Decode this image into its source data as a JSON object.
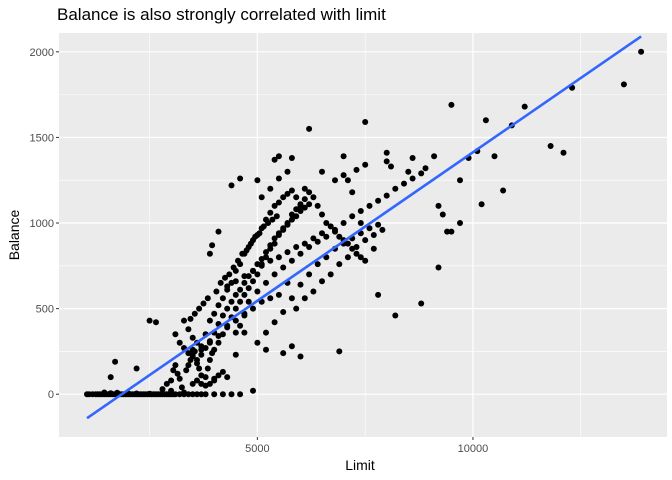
{
  "chart_data": {
    "type": "scatter",
    "title": "Balance is also strongly correlated with limit",
    "xlabel": "Limit",
    "ylabel": "Balance",
    "xlim": [
      400,
      14500
    ],
    "ylim": [
      -250,
      2110
    ],
    "x_ticks": [
      5000,
      10000
    ],
    "x_minor_ticks": [
      2500,
      7500,
      12500
    ],
    "y_ticks": [
      0,
      500,
      1000,
      1500,
      2000
    ],
    "y_minor_ticks": [
      250,
      750,
      1250,
      1750
    ],
    "grid": true,
    "legend": "none",
    "colors": {
      "panel": "#ebebeb",
      "grid": "#ffffff",
      "point": "#000000",
      "fit_line": "#3366ff"
    },
    "fit_line": {
      "x": [
        1050,
        13900
      ],
      "y": [
        -140,
        2090
      ]
    },
    "points": [
      [
        1050,
        0
      ],
      [
        1100,
        0
      ],
      [
        1180,
        0
      ],
      [
        1250,
        0
      ],
      [
        1300,
        0
      ],
      [
        1350,
        0
      ],
      [
        1400,
        0
      ],
      [
        1450,
        0
      ],
      [
        1500,
        0
      ],
      [
        1550,
        0
      ],
      [
        1600,
        0
      ],
      [
        1650,
        0
      ],
      [
        1700,
        0
      ],
      [
        1750,
        0
      ],
      [
        1800,
        0
      ],
      [
        1850,
        0
      ],
      [
        1900,
        0
      ],
      [
        1950,
        0
      ],
      [
        2000,
        0
      ],
      [
        2050,
        0
      ],
      [
        2100,
        0
      ],
      [
        2150,
        0
      ],
      [
        2200,
        0
      ],
      [
        2250,
        0
      ],
      [
        2300,
        0
      ],
      [
        2350,
        0
      ],
      [
        2400,
        0
      ],
      [
        2450,
        0
      ],
      [
        2500,
        0
      ],
      [
        2550,
        0
      ],
      [
        2600,
        0
      ],
      [
        2650,
        0
      ],
      [
        2700,
        0
      ],
      [
        2750,
        0
      ],
      [
        2800,
        0
      ],
      [
        2850,
        0
      ],
      [
        2900,
        0
      ],
      [
        2950,
        0
      ],
      [
        3000,
        0
      ],
      [
        3050,
        0
      ],
      [
        3100,
        0
      ],
      [
        3200,
        0
      ],
      [
        3300,
        0
      ],
      [
        3400,
        0
      ],
      [
        3500,
        0
      ],
      [
        3600,
        0
      ],
      [
        3700,
        0
      ],
      [
        3800,
        0
      ],
      [
        4000,
        0
      ],
      [
        4200,
        0
      ],
      [
        4400,
        0
      ],
      [
        4600,
        0
      ],
      [
        1450,
        10
      ],
      [
        1600,
        5
      ],
      [
        1750,
        8
      ],
      [
        2000,
        6
      ],
      [
        2200,
        4
      ],
      [
        2500,
        3
      ],
      [
        1700,
        190
      ],
      [
        1600,
        100
      ],
      [
        2200,
        150
      ],
      [
        2500,
        430
      ],
      [
        2650,
        420
      ],
      [
        2800,
        30
      ],
      [
        3000,
        20
      ],
      [
        2900,
        60
      ],
      [
        3000,
        80
      ],
      [
        3050,
        140
      ],
      [
        3100,
        170
      ],
      [
        3150,
        120
      ],
      [
        3200,
        90
      ],
      [
        3250,
        40
      ],
      [
        3300,
        10
      ],
      [
        3350,
        140
      ],
      [
        3400,
        170
      ],
      [
        3450,
        200
      ],
      [
        3500,
        260
      ],
      [
        3550,
        250
      ],
      [
        3600,
        180
      ],
      [
        3650,
        150
      ],
      [
        3700,
        60
      ],
      [
        3800,
        100
      ],
      [
        3850,
        150
      ],
      [
        3900,
        200
      ],
      [
        3950,
        240
      ],
      [
        4000,
        260
      ],
      [
        4100,
        300
      ],
      [
        4200,
        350
      ],
      [
        4300,
        400
      ],
      [
        4400,
        450
      ],
      [
        4500,
        500
      ],
      [
        4600,
        540
      ],
      [
        4700,
        580
      ],
      [
        4800,
        620
      ],
      [
        4900,
        660
      ],
      [
        5000,
        700
      ],
      [
        5100,
        760
      ],
      [
        5200,
        800
      ],
      [
        5300,
        850
      ],
      [
        5400,
        880
      ],
      [
        5500,
        930
      ],
      [
        5600,
        960
      ],
      [
        5700,
        1000
      ],
      [
        5800,
        1050
      ],
      [
        5900,
        1080
      ],
      [
        6000,
        1110
      ],
      [
        6100,
        1140
      ],
      [
        6200,
        1180
      ],
      [
        6300,
        1150
      ],
      [
        6400,
        1100
      ],
      [
        6500,
        1050
      ],
      [
        6600,
        1000
      ],
      [
        6700,
        980
      ],
      [
        6800,
        950
      ],
      [
        6900,
        920
      ],
      [
        7000,
        900
      ],
      [
        7100,
        880
      ],
      [
        7200,
        850
      ],
      [
        7300,
        820
      ],
      [
        7400,
        800
      ],
      [
        7500,
        780
      ],
      [
        3300,
        430
      ],
      [
        3400,
        380
      ],
      [
        3500,
        330
      ],
      [
        3600,
        300
      ],
      [
        3700,
        280
      ],
      [
        3800,
        350
      ],
      [
        3900,
        430
      ],
      [
        4000,
        470
      ],
      [
        4100,
        520
      ],
      [
        4200,
        560
      ],
      [
        4300,
        610
      ],
      [
        4400,
        650
      ],
      [
        4500,
        720
      ],
      [
        4600,
        760
      ],
      [
        4700,
        820
      ],
      [
        4800,
        860
      ],
      [
        4900,
        900
      ],
      [
        5000,
        930
      ],
      [
        5100,
        970
      ],
      [
        5200,
        1020
      ],
      [
        5300,
        1060
      ],
      [
        5400,
        1100
      ],
      [
        5500,
        1120
      ],
      [
        5600,
        1150
      ],
      [
        5700,
        1170
      ],
      [
        5800,
        1190
      ],
      [
        5900,
        1150
      ],
      [
        6000,
        1100
      ],
      [
        3950,
        870
      ],
      [
        3900,
        820
      ],
      [
        4100,
        950
      ],
      [
        3450,
        440
      ],
      [
        3550,
        470
      ],
      [
        3650,
        500
      ],
      [
        3750,
        530
      ],
      [
        3850,
        560
      ],
      [
        4050,
        600
      ],
      [
        4150,
        650
      ],
      [
        4250,
        680
      ],
      [
        4350,
        700
      ],
      [
        4450,
        740
      ],
      [
        4550,
        780
      ],
      [
        4650,
        820
      ],
      [
        4750,
        840
      ],
      [
        4850,
        880
      ],
      [
        4950,
        920
      ],
      [
        5050,
        940
      ],
      [
        5150,
        980
      ],
      [
        5250,
        1000
      ],
      [
        5350,
        1020
      ],
      [
        5450,
        1040
      ],
      [
        3100,
        350
      ],
      [
        3200,
        300
      ],
      [
        3300,
        270
      ],
      [
        3400,
        240
      ],
      [
        3500,
        220
      ],
      [
        3600,
        200
      ],
      [
        3700,
        230
      ],
      [
        3800,
        270
      ],
      [
        3900,
        310
      ],
      [
        4000,
        360
      ],
      [
        4100,
        410
      ],
      [
        4200,
        460
      ],
      [
        4300,
        500
      ],
      [
        4400,
        540
      ],
      [
        4500,
        580
      ],
      [
        4600,
        610
      ],
      [
        4700,
        650
      ],
      [
        4800,
        690
      ],
      [
        4900,
        720
      ],
      [
        5000,
        760
      ],
      [
        5100,
        790
      ],
      [
        5200,
        830
      ],
      [
        5300,
        870
      ],
      [
        5400,
        910
      ],
      [
        5500,
        940
      ],
      [
        5600,
        970
      ],
      [
        5700,
        990
      ],
      [
        5800,
        1020
      ],
      [
        5900,
        1040
      ],
      [
        6000,
        1070
      ],
      [
        6100,
        1090
      ],
      [
        6200,
        1110
      ],
      [
        4400,
        1220
      ],
      [
        4600,
        1260
      ],
      [
        5000,
        1250
      ],
      [
        5400,
        1370
      ],
      [
        5500,
        1390
      ],
      [
        5800,
        1380
      ],
      [
        6200,
        1550
      ],
      [
        7500,
        1590
      ],
      [
        7000,
        1390
      ],
      [
        7300,
        1310
      ],
      [
        8000,
        1410
      ],
      [
        8100,
        1330
      ],
      [
        8500,
        1300
      ],
      [
        8600,
        1380
      ],
      [
        8900,
        1320
      ],
      [
        9100,
        1390
      ],
      [
        9500,
        1690
      ],
      [
        9700,
        1250
      ],
      [
        9900,
        1380
      ],
      [
        10100,
        1420
      ],
      [
        10300,
        1600
      ],
      [
        10500,
        1390
      ],
      [
        10700,
        1190
      ],
      [
        10900,
        1570
      ],
      [
        11200,
        1680
      ],
      [
        11800,
        1450
      ],
      [
        12100,
        1410
      ],
      [
        12300,
        1790
      ],
      [
        13500,
        1810
      ],
      [
        13900,
        2000
      ],
      [
        9200,
        1100
      ],
      [
        9300,
        1050
      ],
      [
        9400,
        950
      ],
      [
        9500,
        950
      ],
      [
        9700,
        1000
      ],
      [
        10200,
        1110
      ],
      [
        9200,
        740
      ],
      [
        8800,
        530
      ],
      [
        8200,
        460
      ],
      [
        7800,
        580
      ],
      [
        7700,
        850
      ],
      [
        7400,
        1000
      ],
      [
        7100,
        1250
      ],
      [
        7200,
        1180
      ],
      [
        6900,
        250
      ],
      [
        6000,
        220
      ],
      [
        5600,
        240
      ],
      [
        5800,
        280
      ],
      [
        5200,
        260
      ],
      [
        4900,
        20
      ],
      [
        4700,
        360
      ],
      [
        4500,
        230
      ],
      [
        4300,
        100
      ],
      [
        4200,
        130
      ],
      [
        4000,
        80
      ],
      [
        3900,
        60
      ],
      [
        3800,
        50
      ],
      [
        3700,
        110
      ],
      [
        3600,
        80
      ],
      [
        3500,
        60
      ],
      [
        4000,
        90
      ],
      [
        4100,
        110
      ],
      [
        4500,
        360
      ],
      [
        4600,
        400
      ],
      [
        4700,
        460
      ],
      [
        4800,
        540
      ],
      [
        5000,
        600
      ],
      [
        5200,
        650
      ],
      [
        5400,
        700
      ],
      [
        5600,
        740
      ],
      [
        5800,
        780
      ],
      [
        6000,
        820
      ],
      [
        6200,
        860
      ],
      [
        6400,
        890
      ],
      [
        6600,
        920
      ],
      [
        6800,
        960
      ],
      [
        7000,
        1000
      ],
      [
        7200,
        1040
      ],
      [
        7400,
        1070
      ],
      [
        7600,
        1100
      ],
      [
        7800,
        1130
      ],
      [
        8000,
        1160
      ],
      [
        8200,
        1200
      ],
      [
        8400,
        1230
      ],
      [
        8600,
        1260
      ],
      [
        8800,
        1290
      ],
      [
        5700,
        650
      ],
      [
        5500,
        580
      ],
      [
        5300,
        560
      ],
      [
        5100,
        540
      ],
      [
        4900,
        500
      ],
      [
        4700,
        470
      ],
      [
        4500,
        430
      ],
      [
        4300,
        390
      ],
      [
        4100,
        340
      ],
      [
        3900,
        300
      ],
      [
        3700,
        260
      ],
      [
        3500,
        230
      ],
      [
        5000,
        300
      ],
      [
        5200,
        360
      ],
      [
        5400,
        420
      ],
      [
        5600,
        480
      ],
      [
        5800,
        560
      ],
      [
        6000,
        640
      ],
      [
        6200,
        700
      ],
      [
        6400,
        760
      ],
      [
        6600,
        800
      ],
      [
        6800,
        850
      ],
      [
        7000,
        880
      ],
      [
        7200,
        910
      ],
      [
        7400,
        940
      ],
      [
        7600,
        970
      ],
      [
        7800,
        990
      ],
      [
        5100,
        1150
      ],
      [
        5300,
        1200
      ],
      [
        5500,
        1260
      ],
      [
        5700,
        1300
      ],
      [
        6100,
        1200
      ],
      [
        6500,
        1300
      ],
      [
        6800,
        1250
      ],
      [
        7000,
        1280
      ],
      [
        7500,
        1340
      ],
      [
        8000,
        1360
      ],
      [
        5900,
        500
      ],
      [
        6100,
        560
      ],
      [
        6300,
        600
      ],
      [
        6500,
        660
      ],
      [
        6700,
        700
      ],
      [
        6900,
        760
      ],
      [
        7100,
        800
      ],
      [
        7300,
        860
      ],
      [
        7500,
        900
      ],
      [
        7700,
        930
      ],
      [
        7900,
        960
      ],
      [
        6500,
        940
      ],
      [
        6300,
        910
      ],
      [
        6100,
        880
      ],
      [
        5900,
        860
      ],
      [
        5700,
        830
      ],
      [
        5500,
        800
      ],
      [
        5300,
        780
      ],
      [
        5100,
        750
      ],
      [
        4900,
        720
      ],
      [
        4700,
        690
      ],
      [
        4500,
        660
      ],
      [
        4300,
        630
      ]
    ]
  }
}
